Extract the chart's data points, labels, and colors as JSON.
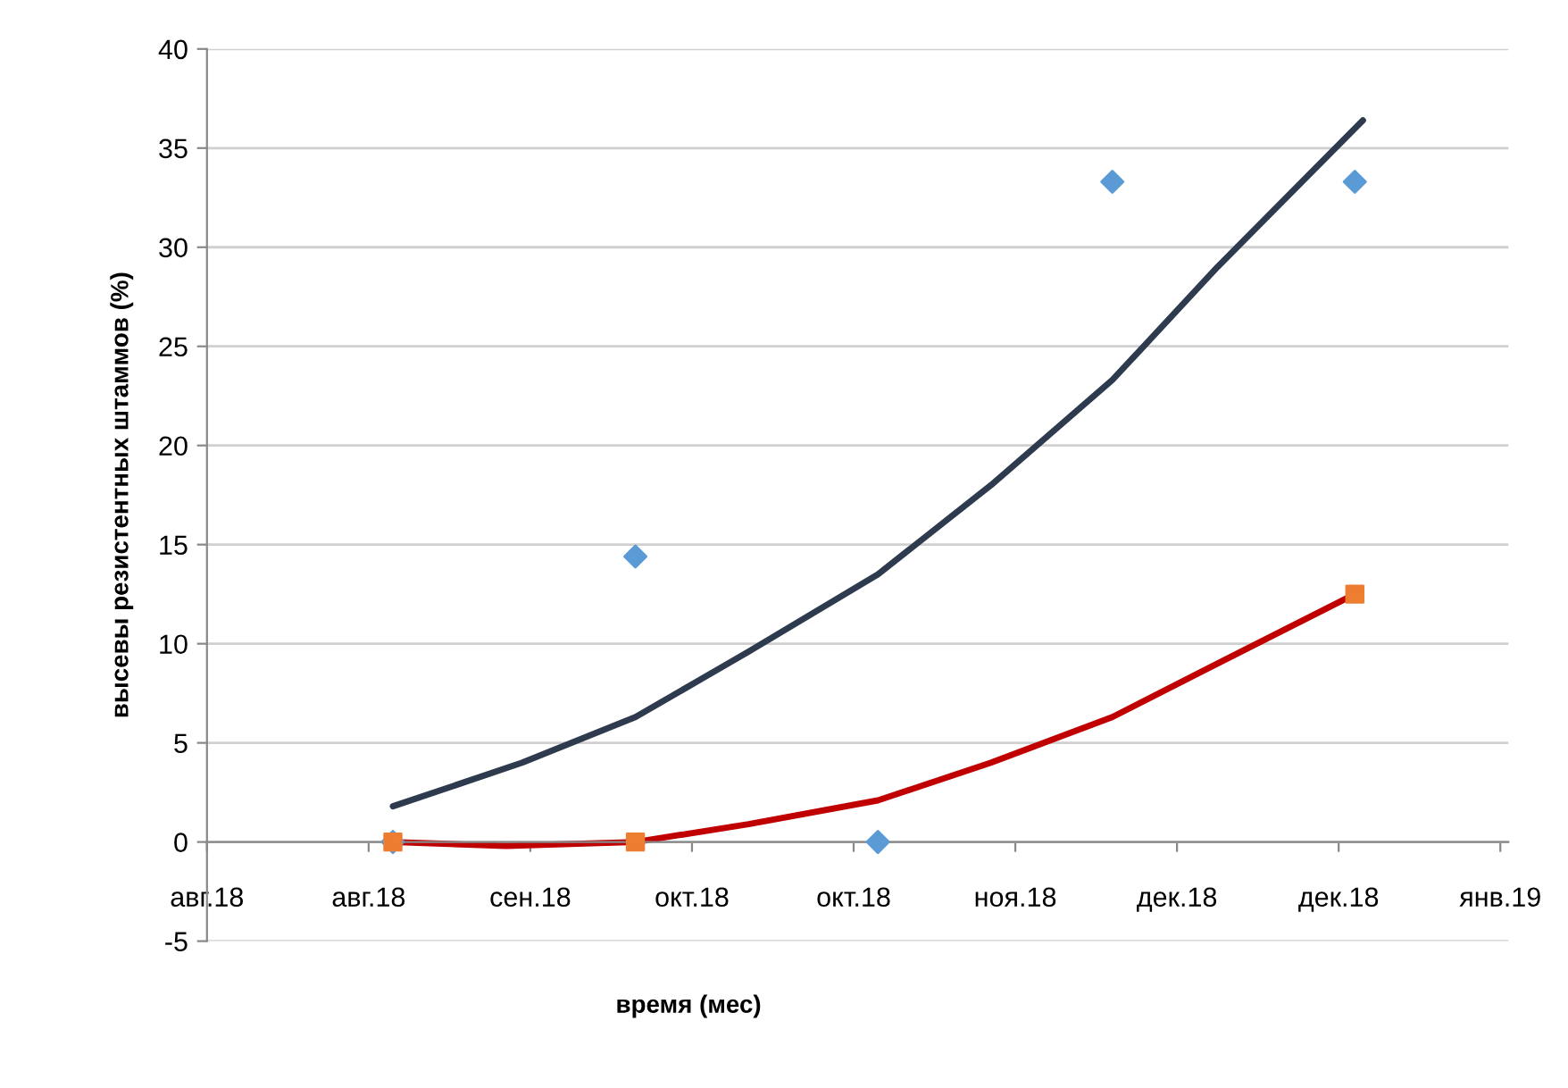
{
  "chart_data": {
    "type": "scatter",
    "xlabel": "время (мес)",
    "ylabel": "высевы резистентных штаммов (%)",
    "xlim": [
      "2018-08-05",
      "2019-01-13"
    ],
    "xticks": [
      {
        "value": "2018-08-05",
        "label": "авг.18"
      },
      {
        "value": "2018-08-25",
        "label": "авг.18"
      },
      {
        "value": "2018-09-14",
        "label": "сен.18"
      },
      {
        "value": "2018-10-04",
        "label": "окт.18"
      },
      {
        "value": "2018-10-24",
        "label": "окт.18"
      },
      {
        "value": "2018-11-13",
        "label": "ноя.18"
      },
      {
        "value": "2018-12-03",
        "label": "дек.18"
      },
      {
        "value": "2018-12-23",
        "label": "дек.18"
      },
      {
        "value": "2019-01-12",
        "label": "янв.19"
      }
    ],
    "ylim": [
      -5,
      40
    ],
    "yticks": [
      -5,
      0,
      5,
      10,
      15,
      20,
      25,
      30,
      35,
      40
    ],
    "grid": "y",
    "legend": false,
    "series": [
      {
        "type": "line",
        "color": "#2e3a4e",
        "x": [
          "2018-08-28",
          "2018-09-13",
          "2018-09-27",
          "2018-10-11",
          "2018-10-27",
          "2018-11-10",
          "2018-11-25",
          "2018-12-08",
          "2018-12-26"
        ],
        "values": [
          1.8,
          4,
          6.3,
          9.6,
          13.5,
          18,
          23.3,
          29,
          36.4
        ]
      },
      {
        "type": "line",
        "color": "#c00000",
        "x": [
          "2018-08-28",
          "2018-09-11",
          "2018-09-27",
          "2018-10-11",
          "2018-10-27",
          "2018-11-10",
          "2018-11-25",
          "2018-12-08",
          "2018-12-25"
        ],
        "values": [
          0,
          -0.2,
          0,
          0.9,
          2.1,
          4.0,
          6.3,
          9.0,
          12.5
        ]
      },
      {
        "marker": "diamond",
        "color": "#5b9bd5",
        "x": [
          "2018-08-28",
          "2018-09-27",
          "2018-10-27",
          "2018-11-25",
          "2018-12-25"
        ],
        "values": [
          0,
          14.4,
          0,
          33.3,
          33.3
        ]
      },
      {
        "marker": "square",
        "color": "#ed7d31",
        "x": [
          "2018-08-28",
          "2018-09-27",
          "2018-12-25"
        ],
        "values": [
          0,
          0,
          12.5
        ]
      }
    ]
  }
}
